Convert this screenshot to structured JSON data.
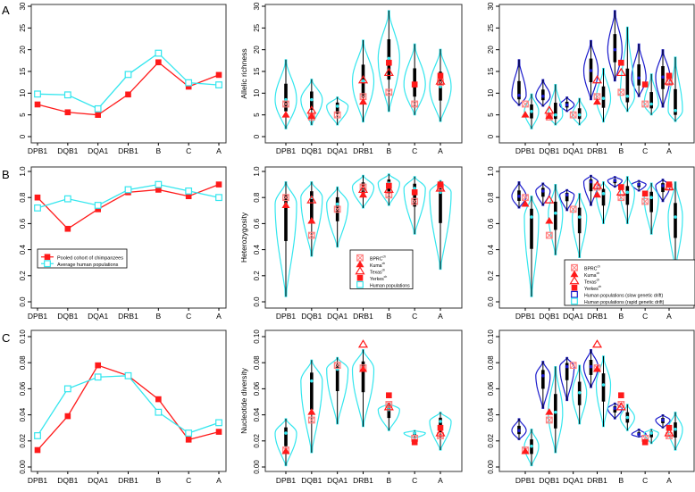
{
  "panel_labels": [
    "A",
    "B",
    "C"
  ],
  "colors": {
    "chimp": "#ff1a1a",
    "chimp_light": "#ff8080",
    "human": "#33e6ee",
    "human_slow": "#1a1acc",
    "box": "#000000"
  },
  "legend_line": {
    "items": [
      {
        "label": "Pooled cohort of chimpanzees",
        "marker": "filled-square",
        "color": "#ff1a1a"
      },
      {
        "label": "Average human populations",
        "marker": "open-square",
        "color": "#33e6ee"
      }
    ]
  },
  "legend_violin": {
    "items": [
      {
        "label": "BPRC",
        "sup": "ch",
        "marker": "crossed-square"
      },
      {
        "label": "Kuma",
        "sup": "ch",
        "marker": "filled-triangle"
      },
      {
        "label": "Texas",
        "sup": "ch",
        "marker": "open-triangle"
      },
      {
        "label": "Yerkes",
        "sup": "ch",
        "marker": "filled-square"
      },
      {
        "label": "Human populations",
        "sup": "",
        "marker": "open-square-cyan"
      }
    ]
  },
  "legend_violin2": {
    "items": [
      {
        "label": "BPRC",
        "sup": "ch",
        "marker": "crossed-square"
      },
      {
        "label": "Kuma",
        "sup": "ch",
        "marker": "filled-triangle"
      },
      {
        "label": "Texas",
        "sup": "ch",
        "marker": "open-triangle"
      },
      {
        "label": "Yerkes",
        "sup": "ch",
        "marker": "filled-square"
      },
      {
        "label": "Human populations (slow genetic drift)",
        "sup": "",
        "marker": "open-square-blue"
      },
      {
        "label": "Human populations (rapid genetic drift)",
        "sup": "",
        "marker": "open-square-cyan"
      }
    ]
  },
  "chart_data": [
    {
      "type": "line",
      "row": "A",
      "col": 0,
      "ylabel": "",
      "ylim": [
        0,
        30
      ],
      "yticks": [
        "0",
        "5",
        "10",
        "15",
        "20",
        "25",
        "30"
      ],
      "categories": [
        "DPB1",
        "DQB1",
        "DQA1",
        "DRB1",
        "B",
        "C",
        "A"
      ],
      "series": [
        {
          "name": "Pooled cohort of chimpanzees",
          "values": [
            7.4,
            5.6,
            5.0,
            9.7,
            17.1,
            11.5,
            14.2
          ]
        },
        {
          "name": "Average human populations",
          "values": [
            9.8,
            9.6,
            6.4,
            14.3,
            19.2,
            12.4,
            11.9
          ]
        }
      ]
    },
    {
      "type": "violin",
      "row": "A",
      "col": 1,
      "ylabel": "Allelic richness",
      "ylim": [
        0,
        30
      ],
      "yticks": [
        "0",
        "5",
        "10",
        "15",
        "20",
        "25",
        "30"
      ],
      "categories": [
        "DPB1",
        "DQB1",
        "DQA1",
        "DRB1",
        "B",
        "C",
        "A"
      ],
      "human": [
        [
          1.8,
          8.5,
          17.7
        ],
        [
          2.7,
          8.5,
          13.2
        ],
        [
          2.7,
          7.0,
          9.1
        ],
        [
          3.4,
          12.8,
          22.2
        ],
        [
          5.8,
          18.0,
          29.0
        ],
        [
          5.0,
          12.0,
          21.3
        ],
        [
          3.5,
          11.5,
          20.1
        ]
      ],
      "chimps": {
        "BPRC": [
          7.5,
          4.5,
          5.0,
          9.2,
          10.2,
          7.5,
          12.5
        ],
        "Kuma": [
          5.0,
          4.7,
          null,
          8.0,
          null,
          null,
          null
        ],
        "Texas": [
          null,
          6.0,
          null,
          13.0,
          14.7,
          null,
          12.7
        ],
        "Yerkes": [
          null,
          null,
          null,
          null,
          17.0,
          12.0,
          14.0
        ]
      }
    },
    {
      "type": "violin",
      "row": "A",
      "col": 2,
      "ylabel": "",
      "ylim": [
        0,
        30
      ],
      "yticks": [
        "0",
        "5",
        "10",
        "15",
        "20",
        "25",
        "30"
      ],
      "categories": [
        "DPB1",
        "DQB1",
        "DQA1",
        "DRB1",
        "B",
        "C",
        "A"
      ],
      "human_slow": [
        [
          7.2,
          9.5,
          17.7
        ],
        [
          7.0,
          9.3,
          13.1
        ],
        [
          5.8,
          7.3,
          9.1
        ],
        [
          8.5,
          15.2,
          22.1
        ],
        [
          12.8,
          20.0,
          29.0
        ],
        [
          9.2,
          13.5,
          21.3
        ],
        [
          6.8,
          13.7,
          20.0
        ]
      ],
      "human_rapid": [
        [
          1.8,
          5.8,
          9.8
        ],
        [
          2.7,
          5.0,
          12.0
        ],
        [
          2.7,
          5.0,
          8.8
        ],
        [
          3.4,
          8.8,
          15.7
        ],
        [
          5.8,
          9.3,
          25.2
        ],
        [
          5.0,
          7.5,
          14.4
        ],
        [
          3.5,
          6.0,
          18.3
        ]
      ],
      "chimps": {
        "BPRC": [
          7.5,
          4.5,
          5.0,
          9.2,
          10.2,
          7.5,
          12.5
        ],
        "Kuma": [
          5.0,
          4.7,
          null,
          8.0,
          null,
          null,
          null
        ],
        "Texas": [
          null,
          6.0,
          null,
          13.0,
          14.7,
          null,
          12.7
        ],
        "Yerkes": [
          null,
          null,
          null,
          null,
          17.0,
          12.0,
          14.0
        ]
      }
    },
    {
      "type": "line",
      "row": "B",
      "col": 0,
      "ylabel": "",
      "ylim": [
        0,
        1
      ],
      "yticks": [
        "0.0",
        "0.2",
        "0.4",
        "0.6",
        "0.8",
        "1.0"
      ],
      "categories": [
        "DPB1",
        "DQB1",
        "DQA1",
        "DRB1",
        "B",
        "C",
        "A"
      ],
      "series": [
        {
          "name": "Pooled cohort of chimpanzees",
          "values": [
            0.8,
            0.56,
            0.71,
            0.84,
            0.86,
            0.81,
            0.9
          ]
        },
        {
          "name": "Average human populations",
          "values": [
            0.72,
            0.79,
            0.74,
            0.86,
            0.9,
            0.85,
            0.8
          ]
        }
      ]
    },
    {
      "type": "violin",
      "row": "B",
      "col": 1,
      "ylabel": "Heterozygosity",
      "ylim": [
        0,
        1
      ],
      "yticks": [
        "0.0",
        "0.2",
        "0.4",
        "0.6",
        "0.8",
        "1.0"
      ],
      "categories": [
        "DPB1",
        "DQB1",
        "DQA1",
        "DRB1",
        "B",
        "C",
        "A"
      ],
      "human": [
        [
          0.04,
          0.75,
          0.92
        ],
        [
          0.35,
          0.8,
          0.92
        ],
        [
          0.42,
          0.75,
          0.88
        ],
        [
          0.72,
          0.88,
          0.97
        ],
        [
          0.74,
          0.91,
          0.98
        ],
        [
          0.52,
          0.87,
          0.96
        ],
        [
          0.25,
          0.84,
          0.93
        ]
      ],
      "chimps": {
        "BPRC": [
          0.8,
          0.51,
          0.71,
          0.88,
          0.82,
          0.77,
          0.88
        ],
        "Kuma": [
          0.74,
          0.62,
          null,
          0.82,
          null,
          null,
          null
        ],
        "Texas": [
          null,
          0.78,
          null,
          0.86,
          0.86,
          null,
          0.87
        ],
        "Yerkes": [
          null,
          null,
          null,
          null,
          0.89,
          0.84,
          0.9
        ]
      }
    },
    {
      "type": "violin",
      "row": "B",
      "col": 2,
      "ylabel": "",
      "ylim": [
        0,
        1
      ],
      "yticks": [
        "0.0",
        "0.2",
        "0.4",
        "0.6",
        "0.8",
        "1.0"
      ],
      "categories": [
        "DPB1",
        "DQB1",
        "DQA1",
        "DRB1",
        "B",
        "C",
        "A"
      ],
      "human_slow": [
        [
          0.72,
          0.81,
          0.92
        ],
        [
          0.74,
          0.85,
          0.91
        ],
        [
          0.7,
          0.82,
          0.86
        ],
        [
          0.74,
          0.92,
          0.97
        ],
        [
          0.88,
          0.93,
          0.96
        ],
        [
          0.85,
          0.9,
          0.93
        ],
        [
          0.77,
          0.89,
          0.94
        ]
      ],
      "human_rapid": [
        [
          0.04,
          0.65,
          0.81
        ],
        [
          0.36,
          0.68,
          0.9
        ],
        [
          0.34,
          0.65,
          0.83
        ],
        [
          0.6,
          0.83,
          0.92
        ],
        [
          0.6,
          0.84,
          0.96
        ],
        [
          0.52,
          0.8,
          0.91
        ],
        [
          0.25,
          0.65,
          0.92
        ]
      ],
      "chimps": {
        "BPRC": [
          0.8,
          0.51,
          0.71,
          0.88,
          0.8,
          0.77,
          0.88
        ],
        "Kuma": [
          0.75,
          0.62,
          null,
          0.82,
          null,
          null,
          null
        ],
        "Texas": [
          null,
          0.78,
          null,
          0.89,
          0.84,
          null,
          0.88
        ],
        "Yerkes": [
          null,
          null,
          null,
          null,
          0.88,
          0.83,
          0.9
        ]
      }
    },
    {
      "type": "line",
      "row": "C",
      "col": 0,
      "ylabel": "",
      "ylim": [
        0,
        0.1
      ],
      "yticks": [
        "0.00",
        "0.02",
        "0.04",
        "0.06",
        "0.08",
        "0.10"
      ],
      "categories": [
        "DPB1",
        "DQB1",
        "DQA1",
        "DRB1",
        "B",
        "C",
        "A"
      ],
      "series": [
        {
          "name": "Pooled cohort of chimpanzees",
          "values": [
            0.013,
            0.039,
            0.078,
            0.07,
            0.052,
            0.021,
            0.027
          ]
        },
        {
          "name": "Average human populations",
          "values": [
            0.024,
            0.06,
            0.069,
            0.07,
            0.042,
            0.026,
            0.034
          ]
        }
      ]
    },
    {
      "type": "violin",
      "row": "C",
      "col": 1,
      "ylabel": "Nucleotide diversity",
      "ylim": [
        0,
        0.1
      ],
      "yticks": [
        "0.00",
        "0.02",
        "0.04",
        "0.06",
        "0.08",
        "0.10"
      ],
      "categories": [
        "DPB1",
        "DQB1",
        "DQA1",
        "DRB1",
        "B",
        "C",
        "A"
      ],
      "human": [
        [
          0.001,
          0.026,
          0.037
        ],
        [
          0.011,
          0.066,
          0.082
        ],
        [
          0.033,
          0.075,
          0.084
        ],
        [
          0.031,
          0.075,
          0.09
        ],
        [
          0.028,
          0.044,
          0.049
        ],
        [
          0.022,
          0.026,
          0.028
        ],
        [
          0.013,
          0.035,
          0.042
        ]
      ],
      "chimps": {
        "BPRC": [
          0.013,
          0.036,
          0.078,
          0.076,
          0.048,
          0.022,
          0.024
        ],
        "Kuma": [
          0.012,
          0.042,
          null,
          0.075,
          null,
          null,
          null
        ],
        "Texas": [
          null,
          null,
          null,
          0.094,
          0.046,
          null,
          0.026
        ],
        "Yerkes": [
          null,
          null,
          null,
          null,
          0.055,
          0.019,
          0.03
        ]
      }
    },
    {
      "type": "violin",
      "row": "C",
      "col": 2,
      "ylabel": "",
      "ylim": [
        0,
        0.1
      ],
      "yticks": [
        "0.00",
        "0.02",
        "0.04",
        "0.06",
        "0.08",
        "0.10"
      ],
      "categories": [
        "DPB1",
        "DQB1",
        "DQA1",
        "DRB1",
        "B",
        "C",
        "A"
      ],
      "human_slow": [
        [
          0.021,
          0.028,
          0.037
        ],
        [
          0.045,
          0.07,
          0.081
        ],
        [
          0.051,
          0.077,
          0.084
        ],
        [
          0.061,
          0.077,
          0.09
        ],
        [
          0.037,
          0.045,
          0.049
        ],
        [
          0.023,
          0.025,
          0.029
        ],
        [
          0.03,
          0.036,
          0.04
        ]
      ],
      "human_rapid": [
        [
          0.001,
          0.016,
          0.029
        ],
        [
          0.011,
          0.042,
          0.077
        ],
        [
          0.033,
          0.057,
          0.078
        ],
        [
          0.031,
          0.063,
          0.085
        ],
        [
          0.028,
          0.038,
          0.048
        ],
        [
          0.018,
          0.026,
          0.029
        ],
        [
          0.013,
          0.029,
          0.042
        ]
      ],
      "chimps": {
        "BPRC": [
          0.013,
          0.036,
          0.078,
          0.076,
          0.048,
          0.022,
          0.024
        ],
        "Kuma": [
          0.012,
          0.042,
          null,
          0.075,
          null,
          null,
          null
        ],
        "Texas": [
          null,
          null,
          null,
          0.094,
          0.046,
          null,
          0.026
        ],
        "Yerkes": [
          null,
          null,
          null,
          null,
          0.055,
          0.019,
          0.03
        ]
      }
    }
  ]
}
